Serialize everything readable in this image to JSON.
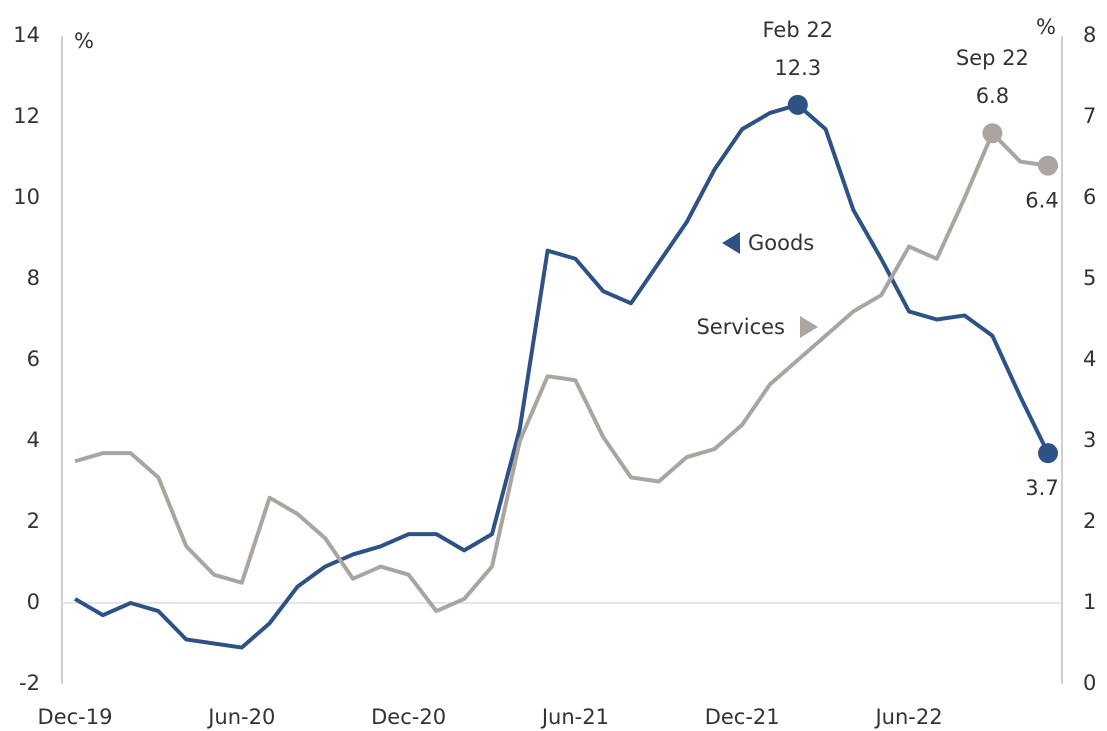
{
  "chart_data": {
    "type": "line",
    "ylabel": "%",
    "y2label": "%",
    "categories": [
      "Dec-19",
      null,
      null,
      null,
      null,
      null,
      "Jun-20",
      null,
      null,
      null,
      null,
      null,
      "Dec-20",
      null,
      null,
      null,
      null,
      null,
      "Jun-21",
      null,
      null,
      null,
      null,
      null,
      "Dec-21",
      null,
      null,
      null,
      null,
      null,
      "Jun-22",
      null,
      null,
      null,
      null,
      null
    ],
    "ylim": [
      -2,
      14
    ],
    "yticks": [
      -2,
      0,
      2,
      4,
      6,
      8,
      10,
      12,
      14
    ],
    "y2lim": [
      0,
      8
    ],
    "y2ticks": [
      0,
      1,
      2,
      3,
      4,
      5,
      6,
      7,
      8
    ],
    "annotations": [
      "Feb 22",
      "Sep 22"
    ],
    "series": [
      {
        "name": "Goods",
        "color": "#2e5286",
        "values": [
          0.1,
          -0.3,
          0.0,
          -0.2,
          -0.9,
          -1.0,
          -1.1,
          -0.5,
          0.4,
          0.9,
          1.2,
          1.4,
          1.7,
          1.7,
          1.3,
          1.7,
          4.3,
          8.7,
          8.5,
          7.7,
          7.4,
          8.4,
          9.4,
          10.7,
          11.7,
          12.1,
          12.3,
          11.7,
          9.7,
          8.5,
          7.2,
          7.0,
          7.1,
          6.6,
          5.1,
          3.7
        ],
        "value_labels": [
          null,
          null,
          null,
          null,
          null,
          null,
          null,
          null,
          null,
          null,
          null,
          null,
          null,
          null,
          null,
          null,
          null,
          null,
          null,
          null,
          null,
          null,
          null,
          null,
          null,
          null,
          "12.3",
          null,
          null,
          null,
          null,
          null,
          null,
          null,
          null,
          "3.7"
        ]
      },
      {
        "name": "Services",
        "color": "#aaa5a0",
        "axis": "y2",
        "values": [
          2.75,
          2.85,
          2.85,
          2.55,
          1.7,
          1.35,
          1.25,
          2.3,
          2.1,
          1.8,
          1.3,
          1.45,
          1.35,
          0.9,
          1.05,
          1.45,
          3.0,
          3.8,
          3.75,
          3.05,
          2.55,
          2.5,
          2.8,
          2.9,
          3.2,
          3.7,
          4.0,
          4.3,
          4.6,
          4.8,
          5.4,
          5.25,
          6.0,
          6.8,
          6.45,
          6.4
        ],
        "value_labels": [
          null,
          null,
          null,
          null,
          null,
          null,
          null,
          null,
          null,
          null,
          null,
          null,
          null,
          null,
          null,
          null,
          null,
          null,
          null,
          null,
          null,
          null,
          null,
          null,
          null,
          null,
          null,
          null,
          null,
          null,
          null,
          null,
          null,
          "6.8",
          null,
          "6.4"
        ]
      }
    ]
  }
}
